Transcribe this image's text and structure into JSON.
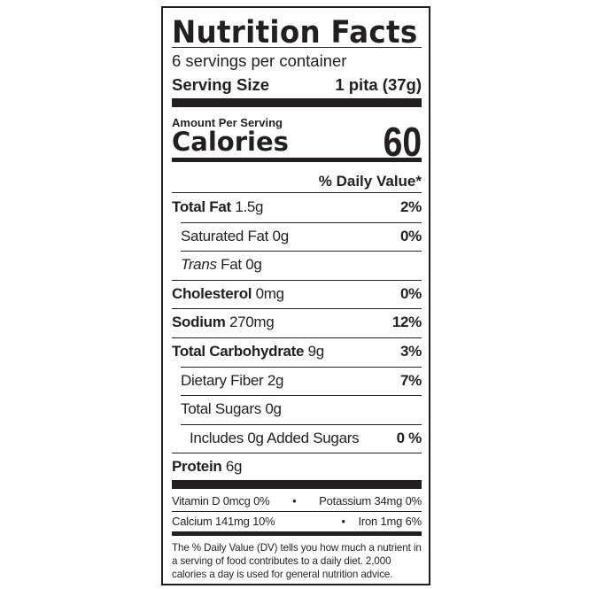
{
  "title": "Nutrition Facts",
  "servings_per_container": "6 servings per container",
  "serving_size": {
    "label": "Serving Size",
    "value": "1 pita (37g)"
  },
  "amount_per_serving": "Amount Per Serving",
  "calories": {
    "label": "Calories",
    "value": "60"
  },
  "daily_value_header": "% Daily Value*",
  "nutrients": [
    {
      "name": "Total Fat",
      "amount": "1.5g",
      "dv": "2%",
      "bold": true,
      "indent": 0
    },
    {
      "name": "Saturated Fat",
      "amount": "0g",
      "dv": "0%",
      "bold": false,
      "indent": 1
    },
    {
      "name": "Trans",
      "name_suffix": "Fat",
      "amount": "0g",
      "dv": "",
      "bold": false,
      "indent": 1,
      "italic": true
    },
    {
      "name": "Cholesterol",
      "amount": "0mg",
      "dv": "0%",
      "bold": true,
      "indent": 0
    },
    {
      "name": "Sodium",
      "amount": "270mg",
      "dv": "12%",
      "bold": true,
      "indent": 0
    },
    {
      "name": "Total Carbohydrate",
      "amount": "9g",
      "dv": "3%",
      "bold": true,
      "indent": 0
    },
    {
      "name": "Dietary Fiber",
      "amount": "2g",
      "dv": "7%",
      "bold": false,
      "indent": 1
    },
    {
      "name": "Total Sugars",
      "amount": "0g",
      "dv": "",
      "bold": false,
      "indent": 1
    },
    {
      "name": "Includes 0g Added Sugars",
      "amount": "",
      "dv": "0 %",
      "bold": false,
      "indent": 2
    },
    {
      "name": "Protein",
      "amount": "6g",
      "dv": "",
      "bold": true,
      "indent": 0
    }
  ],
  "micronutrients": [
    {
      "left": "Vitamin D 0mcg 0%",
      "right": "Potassium 34mg 0%"
    },
    {
      "left": "Calcium 141mg 10%",
      "right": "Iron 1mg 6%"
    }
  ],
  "bullet": "•",
  "footnote": "The % Daily Value (DV) tells you how much a nutrient in a serving of food contributes to a daily diet. 2,000 calories a day is used for general nutrition advice."
}
